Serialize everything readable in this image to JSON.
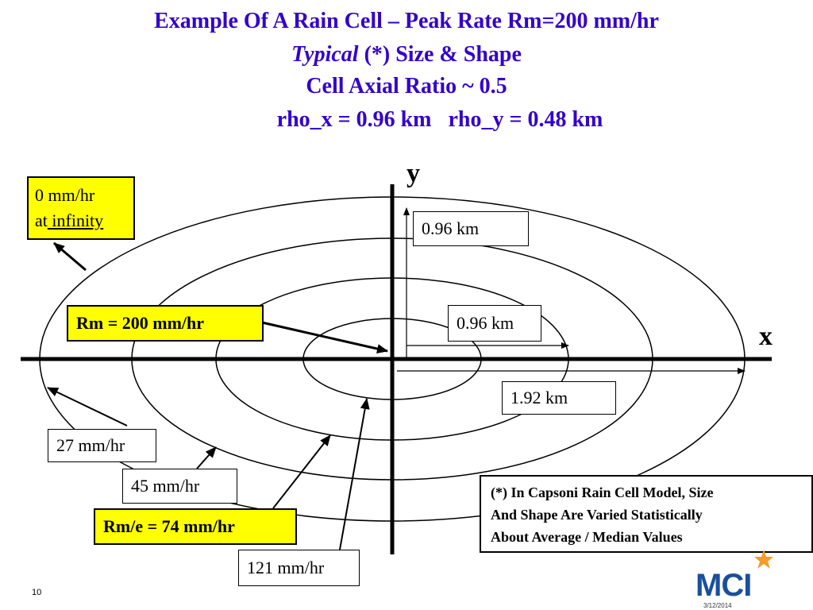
{
  "title": {
    "line1": "Example Of A Rain Cell – Peak Rate Rm=200 mm/hr",
    "line2_italic": "Typical",
    "line2_rest": " (*) Size & Shape",
    "line3": "Cell Axial Ratio ~ 0.5",
    "line4": "rho_x = 0.96 km   rho_y = 0.48 km"
  },
  "axes": {
    "x_label": "x",
    "y_label": "y"
  },
  "labels": {
    "zero_rate_line1": "0 mm/hr",
    "zero_rate_line2_prefix": "at",
    "zero_rate_line2_underlined": " infinity",
    "peak": "Rm = 200 mm/hr",
    "peak_over_e": "Rm/e = 74 mm/hr",
    "rate_27": "27 mm/hr",
    "rate_45": "45 mm/hr",
    "rate_121": "121 mm/hr",
    "dim_y": "0.96 km",
    "dim_x": "0.96 km",
    "dim_x2": "1.92 km"
  },
  "note": {
    "line1": "(*) In Capsoni Rain Cell Model, Size",
    "line2": "And Shape Are Varied Statistically",
    "line3": "About Average / Median Values"
  },
  "footer": {
    "slide_number": "10",
    "date": "3/12/2014",
    "logo_text": "MCI"
  },
  "colors": {
    "title": "#3300cc",
    "highlight": "#ffff00",
    "logo_blue": "#1a4f9c",
    "logo_orange": "#f39c2a"
  }
}
